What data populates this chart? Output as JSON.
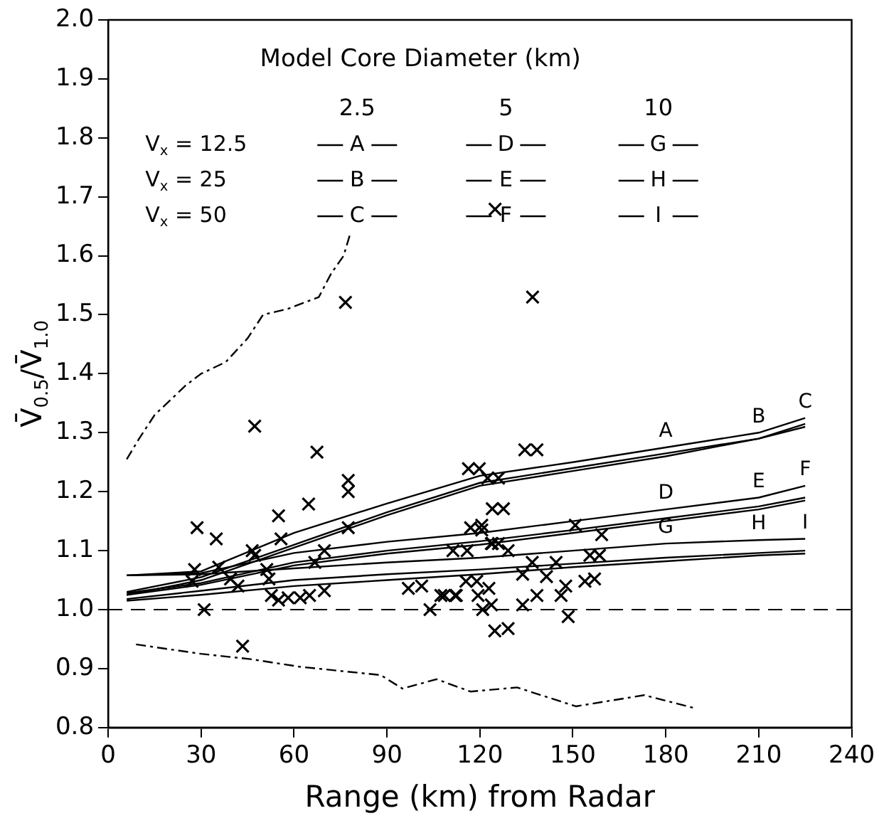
{
  "chart_data": {
    "type": "line",
    "xlabel": "Range (km) from Radar",
    "ylabel": "V̄$_{0.5}$/V̄$_{1.0}$",
    "legend_title": "Model Core Diameter (km)",
    "legend": "top",
    "grid": false,
    "xlim": [
      0,
      240
    ],
    "xticks": [
      0,
      30,
      60,
      90,
      120,
      150,
      180,
      210,
      240
    ],
    "ylim": [
      0.8,
      2.0
    ],
    "yticks": [
      0.8,
      0.9,
      {
        "value": 1.0,
        "label": "1.0"
      },
      1.1,
      1.2,
      1.3,
      1.4,
      1.5,
      1.6,
      1.7,
      1.8,
      1.9,
      {
        "value": 2.0,
        "label": "2.0"
      }
    ],
    "annotations": [
      "2.5",
      "5",
      "10",
      "V$_{x}$ = 12.5",
      "V$_{x}$ = 25",
      "V$_{x}$ = 50"
    ],
    "ref_lines": [
      {
        "axis": "y",
        "value": 1.0,
        "line_style": "dashed",
        "color": "#000000"
      }
    ],
    "x": [
      6,
      30,
      60,
      90,
      120,
      150,
      180,
      210,
      225
    ],
    "series": [
      {
        "name": "A",
        "color": "#000000",
        "values": [
          1.058,
          1.065,
          1.13,
          1.18,
          1.227,
          1.25,
          1.275,
          1.3,
          1.325
        ]
      },
      {
        "name": "B",
        "color": "#000000",
        "values": [
          1.03,
          1.055,
          1.11,
          1.165,
          1.215,
          1.24,
          1.265,
          1.29,
          1.315
        ]
      },
      {
        "name": "C",
        "color": "#000000",
        "values": [
          1.025,
          1.05,
          1.105,
          1.16,
          1.21,
          1.235,
          1.26,
          1.29,
          1.31
        ]
      },
      {
        "name": "D",
        "color": "#000000",
        "values": [
          1.058,
          1.062,
          1.096,
          1.115,
          1.13,
          1.15,
          1.17,
          1.19,
          1.21
        ]
      },
      {
        "name": "E",
        "color": "#000000",
        "values": [
          1.028,
          1.045,
          1.08,
          1.1,
          1.116,
          1.135,
          1.155,
          1.175,
          1.19
        ]
      },
      {
        "name": "F",
        "color": "#000000",
        "values": [
          1.025,
          1.042,
          1.075,
          1.095,
          1.11,
          1.13,
          1.15,
          1.17,
          1.185
        ]
      },
      {
        "name": "G",
        "color": "#000000",
        "values": [
          1.058,
          1.06,
          1.07,
          1.08,
          1.088,
          1.1,
          1.112,
          1.118,
          1.12
        ]
      },
      {
        "name": "H",
        "color": "#000000",
        "values": [
          1.018,
          1.032,
          1.05,
          1.06,
          1.068,
          1.078,
          1.088,
          1.096,
          1.1
        ]
      },
      {
        "name": "I",
        "color": "#000000",
        "values": [
          1.015,
          1.025,
          1.04,
          1.05,
          1.06,
          1.072,
          1.082,
          1.092,
          1.095
        ]
      },
      {
        "color": "#000000",
        "line_style": "dashed",
        "x": [
          6,
          10,
          15,
          25,
          30,
          38,
          45,
          50,
          58,
          68,
          72,
          76,
          78
        ],
        "values": [
          1.255,
          1.29,
          1.33,
          1.38,
          1.4,
          1.42,
          1.46,
          1.5,
          1.51,
          1.53,
          1.57,
          1.6,
          1.635
        ]
      },
      {
        "color": "#000000",
        "line_style": "dashed",
        "x": [
          9,
          30,
          46,
          62,
          88,
          95,
          106,
          117,
          132,
          151,
          173,
          190
        ],
        "values": [
          0.941,
          0.925,
          0.916,
          0.903,
          0.889,
          0.866,
          0.882,
          0.861,
          0.868,
          0.836,
          0.855,
          0.832
        ]
      },
      {
        "type": "scatter",
        "marker": "cross",
        "color": "#000000",
        "x": [
          28.7,
          34.9,
          47.3,
          27.9,
          27.1,
          31,
          35.7,
          39.5,
          41.9,
          43.4,
          46.5,
          47.3,
          51.2,
          51.9,
          52.7,
          55,
          55.8,
          55,
          58.1,
          62,
          65,
          64.7,
          67.4,
          66.7,
          69.8,
          69.8,
          77.5,
          77.5,
          77.5,
          96.9,
          103.9,
          108.5,
          112.4,
          115.5,
          116.3,
          117,
          122.5,
          124,
          124,
          119.4,
          120.9,
          124.8,
          119.8,
          126,
          134.5,
          138.4,
          127.6,
          120.6,
          120.6,
          126,
          111.3,
          115.9,
          123.7,
          129.1,
          150.8,
          159.3,
          155.5,
          158.6,
          136.9,
          144.6,
          133.8,
          141.5,
          147.7,
          153.9,
          157,
          107.4,
          112,
          119,
          122.9,
          123.7,
          129.1,
          133.8,
          138.4,
          146.2,
          148.5,
          101.2,
          124.9,
          76.6,
          137
        ],
        "values": [
          1.139,
          1.12,
          1.311,
          1.068,
          1.048,
          1.0,
          1.072,
          1.052,
          1.04,
          0.938,
          1.1,
          1.092,
          1.068,
          1.052,
          1.024,
          1.159,
          1.12,
          1.016,
          1.02,
          1.02,
          1.024,
          1.179,
          1.267,
          1.08,
          1.1,
          1.032,
          1.219,
          1.2,
          1.139,
          1.036,
          1.0,
          1.024,
          1.024,
          1.048,
          1.239,
          1.139,
          1.223,
          1.171,
          1.112,
          1.024,
          1.0,
          0.964,
          1.239,
          1.223,
          1.271,
          1.271,
          1.171,
          1.143,
          1.135,
          1.112,
          1.1,
          1.1,
          1.112,
          1.1,
          1.143,
          1.127,
          1.092,
          1.092,
          1.08,
          1.08,
          1.06,
          1.056,
          1.04,
          1.048,
          1.052,
          1.024,
          1.024,
          1.048,
          1.036,
          1.008,
          0.968,
          1.008,
          1.024,
          1.024,
          0.988,
          1.04,
          1.679,
          1.521,
          1.53
        ]
      }
    ]
  }
}
